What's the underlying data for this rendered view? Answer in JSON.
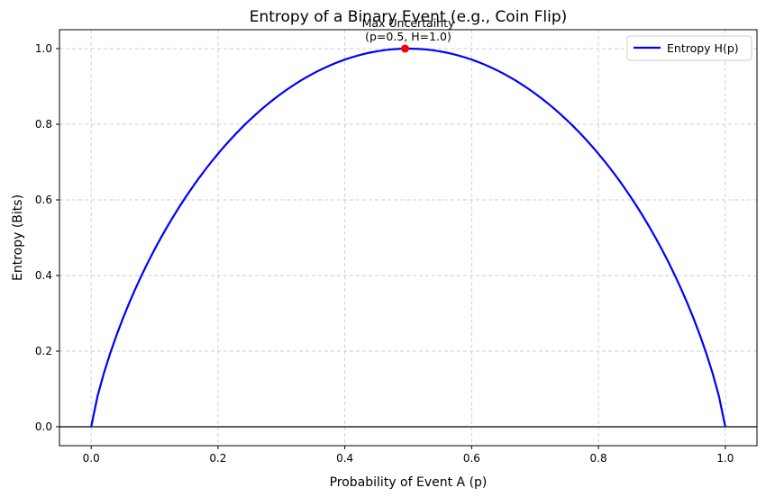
{
  "chart_data": {
    "type": "line",
    "title": "Entropy of a Binary Event (e.g., Coin Flip)",
    "xlabel": "Probability of Event A (p)",
    "ylabel": "Entropy (Bits)",
    "xlim": [
      -0.05,
      1.05
    ],
    "ylim": [
      -0.05,
      1.05
    ],
    "xticks": [
      0.0,
      0.2,
      0.4,
      0.6,
      0.8,
      1.0
    ],
    "yticks": [
      0.0,
      0.2,
      0.4,
      0.6,
      0.8,
      1.0
    ],
    "xtick_labels": [
      "0.0",
      "0.2",
      "0.4",
      "0.6",
      "0.8",
      "1.0"
    ],
    "ytick_labels": [
      "0.0",
      "0.2",
      "0.4",
      "0.6",
      "0.8",
      "1.0"
    ],
    "grid": true,
    "legend_position": "top-right",
    "baseline_y": 0,
    "series": [
      {
        "name": "Entropy H(p)",
        "color": "#0000ff",
        "function": "binary_entropy",
        "x_range": [
          0.0,
          1.0
        ]
      }
    ],
    "marker": {
      "x": 0.495,
      "y": 1.0,
      "color": "#ff0000"
    },
    "annotation": {
      "lines": [
        "Max Uncertainty",
        "(p=0.5, H=1.0)"
      ],
      "x": 0.5,
      "y": 1.0
    }
  }
}
